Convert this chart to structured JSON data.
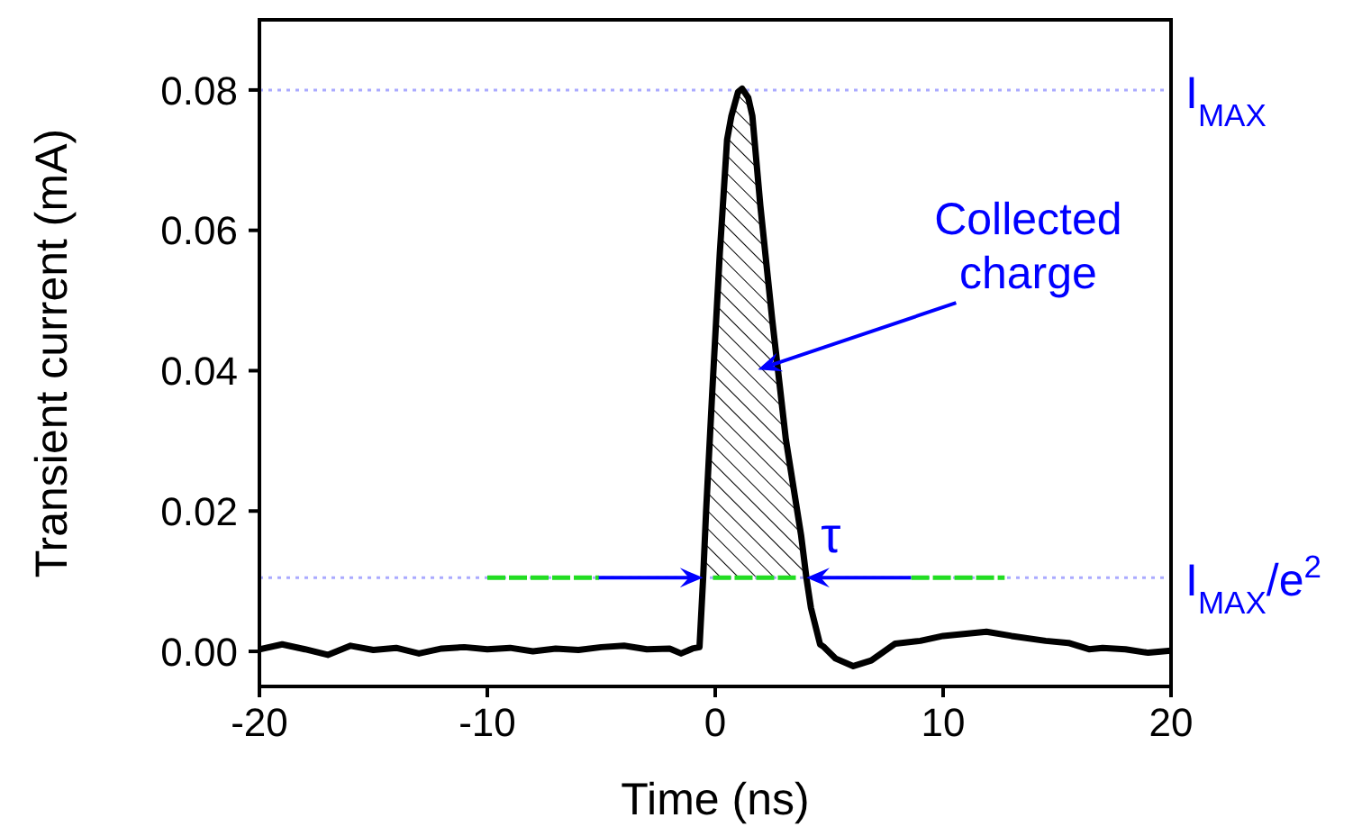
{
  "chart_data": {
    "type": "line",
    "xlabel": "Time (ns)",
    "ylabel": "Transient current (mA)",
    "xlim": [
      -20,
      20
    ],
    "xticks": [
      -20,
      -10,
      0,
      10,
      20
    ],
    "ylim": [
      -0.005,
      0.09
    ],
    "yticks": [
      {
        "value": 0,
        "label": "0.00"
      },
      {
        "value": 0.02,
        "label": "0.02"
      },
      {
        "value": 0.04,
        "label": "0.04"
      },
      {
        "value": 0.06,
        "label": "0.06"
      },
      {
        "value": 0.08,
        "label": "0.08"
      }
    ],
    "grid": false,
    "legend": false,
    "marker": "none",
    "series": [
      {
        "type": "area",
        "color": "#000000",
        "x": [
          -0.53,
          -0.4,
          -0.13,
          0.2,
          0.52,
          0.71,
          1.0,
          1.18,
          1.45,
          1.63,
          1.98,
          2.5,
          3.1,
          3.77,
          4.0
        ],
        "values": [
          0.0105,
          0.02,
          0.037,
          0.0567,
          0.0729,
          0.0763,
          0.0797,
          0.0802,
          0.0789,
          0.0763,
          0.0635,
          0.0473,
          0.0302,
          0.0165,
          0.0105
        ]
      },
      {
        "color": "#000000",
        "line_style": "solid",
        "x": [
          -20,
          -19,
          -18,
          -17,
          -16,
          -15,
          -14,
          -13,
          -12,
          -11,
          -10,
          -9,
          -8,
          -7,
          -6,
          -5,
          -4,
          -3,
          -2,
          -1.5,
          -1,
          -0.69,
          -0.53,
          -0.4,
          -0.13,
          0.2,
          0.52,
          0.71,
          1.0,
          1.18,
          1.45,
          1.63,
          1.98,
          2.5,
          3.1,
          3.77,
          4.0,
          4.2,
          4.6,
          4.74,
          5.27,
          6.06,
          6.85,
          7.9,
          9,
          10,
          11,
          11.9,
          13,
          14.5,
          15.5,
          16.4,
          17,
          18,
          19,
          20
        ],
        "values": [
          0.0003,
          0.001,
          0.0003,
          -0.0005,
          0.0008,
          0.0002,
          0.0005,
          -0.0003,
          0.0004,
          0.0006,
          0.0003,
          0.0005,
          0.0,
          0.0004,
          0.0002,
          0.0006,
          0.0008,
          0.0003,
          0.0004,
          -0.0003,
          0.0004,
          0.0006,
          0.0105,
          0.02,
          0.037,
          0.0567,
          0.0729,
          0.0763,
          0.0797,
          0.0802,
          0.0789,
          0.0763,
          0.0635,
          0.0473,
          0.0302,
          0.0165,
          0.0105,
          0.0062,
          0.001,
          0.0007,
          -0.001,
          -0.0021,
          -0.0013,
          0.0011,
          0.0015,
          0.0022,
          0.0025,
          0.0028,
          0.0022,
          0.0015,
          0.0012,
          0.0003,
          0.0005,
          0.0003,
          -0.0002,
          0.0001
        ]
      },
      {
        "color": "#22dd22",
        "line_style": "dashed",
        "x": [
          -10,
          -5.1,
          -3,
          -0.1,
          3.6,
          6,
          8.6,
          12.7
        ],
        "values": [
          0.0105,
          0.0105,
          null,
          0.0105,
          0.0105,
          null,
          0.0105,
          0.0105
        ]
      }
    ],
    "ref_lines": [
      {
        "axis": "y",
        "value": 0.08,
        "label": "I$_{MAX}$",
        "color": "#aaaaff",
        "line_style": "dotted"
      },
      {
        "axis": "y",
        "value": 0.0105,
        "label": "I$_{MAX}$/e$^{2}$",
        "color": "#aaaaff",
        "line_style": "dotted"
      }
    ],
    "annotations": [
      "τ",
      "Collected charge"
    ]
  }
}
